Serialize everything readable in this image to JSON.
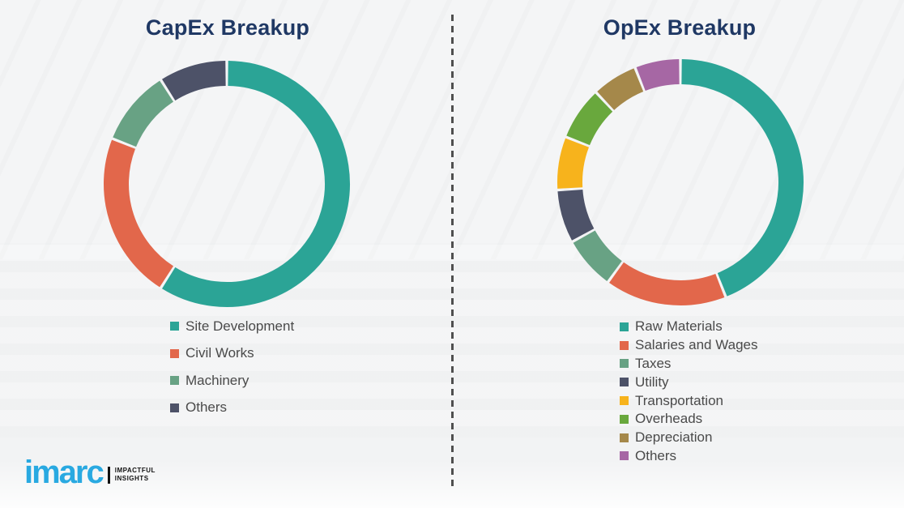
{
  "page": {
    "background_color": "#f2f3f4",
    "legend_text_color": "#4a4a4a",
    "title_color": "#1f3864"
  },
  "divider": {
    "style": "dashed-vertical",
    "color": "#4f4f4f"
  },
  "charts": [
    {
      "title": "CapEx Breakup"
    },
    {
      "title": "OpEx Breakup"
    }
  ],
  "chart_data": [
    {
      "type": "pie",
      "subtype": "donut",
      "title": "CapEx Breakup",
      "labels": [
        "Site Development",
        "Civil Works",
        "Machinery",
        "Others"
      ],
      "values": [
        59,
        22,
        10,
        9
      ],
      "colors": [
        "#2BA496",
        "#E2674B",
        "#68A284",
        "#4D5268"
      ],
      "start_angle_deg": 0,
      "direction": "clockwise",
      "legend_position": "below-left"
    },
    {
      "type": "pie",
      "subtype": "donut",
      "title": "OpEx Breakup",
      "labels": [
        "Raw Materials",
        "Salaries and Wages",
        "Taxes",
        "Utility",
        "Transportation",
        "Overheads",
        "Depreciation",
        "Others"
      ],
      "values": [
        44,
        16,
        7,
        7,
        7,
        7,
        6,
        6
      ],
      "colors": [
        "#2BA496",
        "#E2674B",
        "#68A284",
        "#4D5268",
        "#F7B31C",
        "#69A83D",
        "#A5884A",
        "#A667A4"
      ],
      "start_angle_deg": 0,
      "direction": "clockwise",
      "legend_position": "below-left"
    }
  ],
  "logo": {
    "wordmark": "imarc",
    "wordmark_color": "#29A9E1",
    "tagline_line1": "IMPACTFUL",
    "tagline_line2": "INSIGHTS"
  }
}
